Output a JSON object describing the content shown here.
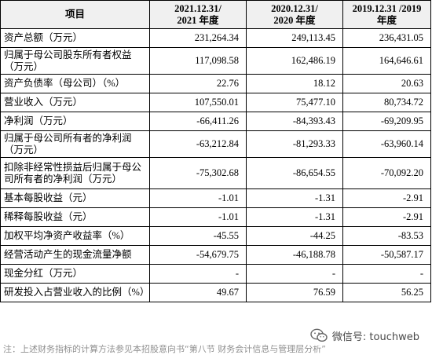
{
  "table": {
    "header": {
      "item": "项目",
      "col1": [
        "2021.12.31/",
        "2021 年度"
      ],
      "col2": [
        "2020.12.31/",
        "2020 年度"
      ],
      "col3": [
        "2019.12.31 /2019",
        "年度"
      ]
    },
    "rows": [
      {
        "label": "资产总额（万元）",
        "v": [
          "231,264.34",
          "249,113.45",
          "236,431.05"
        ]
      },
      {
        "label": "归属于母公司股东所有者权益（万元）",
        "v": [
          "117,098.58",
          "162,486.19",
          "164,646.61"
        ]
      },
      {
        "label": "资产负债率（母公司）（%）",
        "v": [
          "22.76",
          "18.12",
          "20.63"
        ]
      },
      {
        "label": "营业收入（万元）",
        "v": [
          "107,550.01",
          "75,477.10",
          "80,734.72"
        ]
      },
      {
        "label": "净利润（万元）",
        "v": [
          "-66,411.26",
          "-84,393.43",
          "-69,209.95"
        ]
      },
      {
        "label": "归属于母公司所有者的净利润（万元）",
        "v": [
          "-63,212.84",
          "-81,293.33",
          "-63,960.14"
        ]
      },
      {
        "label": "扣除非经常性损益后归属于母公司所有者的净利润（万元）",
        "v": [
          "-75,302.68",
          "-86,654.55",
          "-70,092.20"
        ]
      },
      {
        "label": "基本每股收益（元）",
        "v": [
          "-1.01",
          "-1.31",
          "-2.91"
        ]
      },
      {
        "label": "稀释每股收益（元）",
        "v": [
          "-1.01",
          "-1.31",
          "-2.91"
        ]
      },
      {
        "label": "加权平均净资产收益率（%）",
        "v": [
          "-45.55",
          "-44.25",
          "-83.53"
        ]
      },
      {
        "label": "经营活动产生的现金流量净额",
        "v": [
          "-54,679.75",
          "-46,188.78",
          "-50,587.17"
        ]
      },
      {
        "label": "现金分红（万元）",
        "v": [
          "-",
          "-",
          "-"
        ]
      },
      {
        "label": "研发投入占营业收入的比例（%）",
        "v": [
          "49.67",
          "76.59",
          "56.25"
        ]
      }
    ]
  },
  "footnote": "注：上述财务指标的计算方法参见本招股意向书“第八节 财务会计信息与管理层分析”",
  "watermark": {
    "icon": "wechat-icon",
    "text": "微信号: touchweb"
  }
}
